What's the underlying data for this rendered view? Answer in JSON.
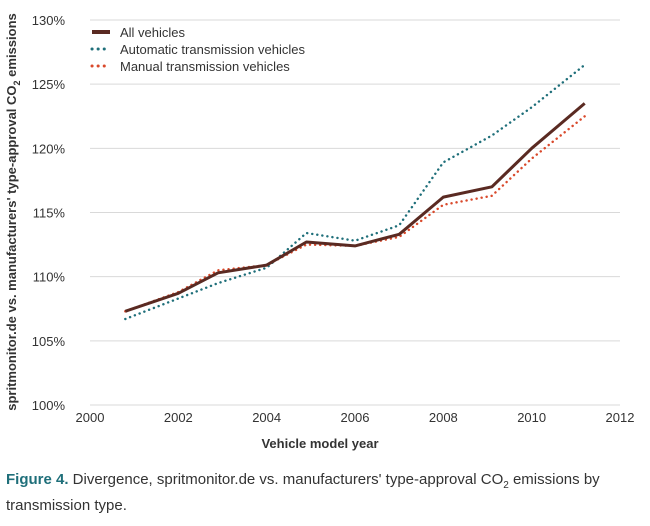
{
  "chart_data": {
    "type": "line",
    "x": [
      2000.8,
      2002,
      2002.9,
      2004,
      2004.9,
      2006,
      2007,
      2008,
      2009.1,
      2010,
      2011.2
    ],
    "series": [
      {
        "name": "All vehicles",
        "style": "solid",
        "color": "#5a2a22",
        "values": [
          107.3,
          108.7,
          110.3,
          110.9,
          112.7,
          112.4,
          113.3,
          116.2,
          117.0,
          120.0,
          123.5
        ]
      },
      {
        "name": "Automatic transmission vehicles",
        "style": "dotted",
        "color": "#1f6f7a",
        "values": [
          106.7,
          108.3,
          109.5,
          110.7,
          113.4,
          112.8,
          114.0,
          118.9,
          121.0,
          123.2,
          126.5
        ]
      },
      {
        "name": "Manual transmission vehicles",
        "style": "dotted",
        "color": "#d9492b",
        "values": [
          107.3,
          108.8,
          110.5,
          110.9,
          112.5,
          112.4,
          113.1,
          115.6,
          116.3,
          119.2,
          122.5
        ]
      }
    ],
    "xlabel": "Vehicle model year",
    "ylabel_parts": [
      "spritmonitor.de vs. manufacturers' type-approval CO",
      "2",
      " emissions"
    ],
    "xlim": [
      2000,
      2012
    ],
    "ylim": [
      100,
      130
    ],
    "x_ticks": [
      2000,
      2002,
      2004,
      2006,
      2008,
      2010,
      2012
    ],
    "y_ticks": [
      100,
      105,
      110,
      115,
      120,
      125,
      130
    ],
    "y_tick_labels": [
      "100%",
      "105%",
      "110%",
      "115%",
      "120%",
      "125%",
      "130%"
    ],
    "grid": "horizontal",
    "legend_position": "top-left"
  },
  "caption": {
    "label": "Figure 4.",
    "text_before_sub": " Divergence, spritmonitor.de vs. manufacturers' type-approval CO",
    "sub": "2",
    "text_after_sub": " emissions by transmission type."
  }
}
